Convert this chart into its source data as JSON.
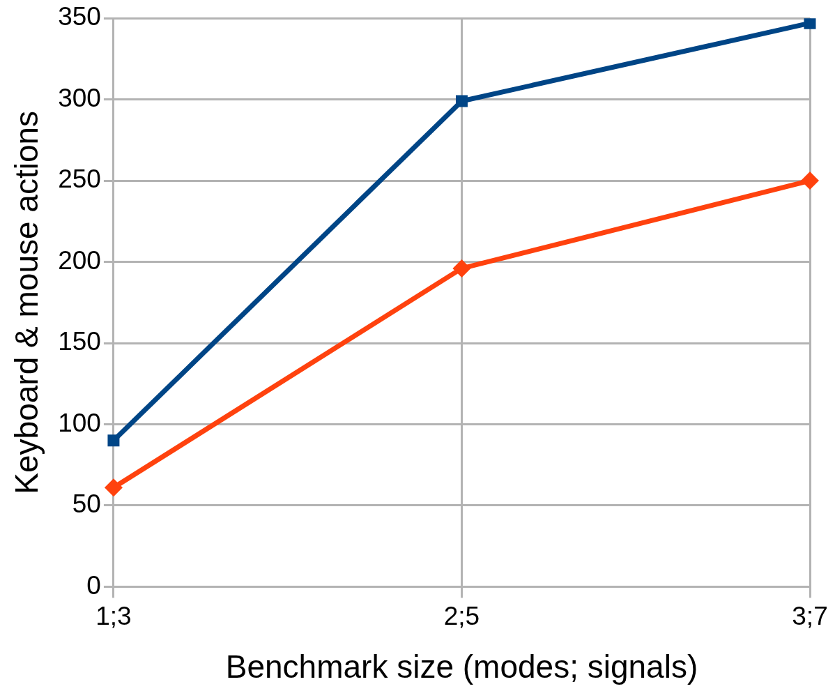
{
  "chart_data": {
    "type": "line",
    "xlabel": "Benchmark size (modes; signals)",
    "ylabel": "Keyboard & mouse actions",
    "categories": [
      "1;3",
      "2;5",
      "3;7"
    ],
    "series": [
      {
        "color": "#004586",
        "values": [
          90,
          299,
          347
        ],
        "marker": "square"
      },
      {
        "color": "#ff420e",
        "values": [
          61,
          196,
          250
        ],
        "marker": "diamond"
      }
    ],
    "ylim": [
      0,
      350
    ],
    "yticks": [
      0,
      50,
      100,
      150,
      200,
      250,
      300,
      350
    ],
    "grid": true,
    "legend": false,
    "line_style": "solid"
  }
}
